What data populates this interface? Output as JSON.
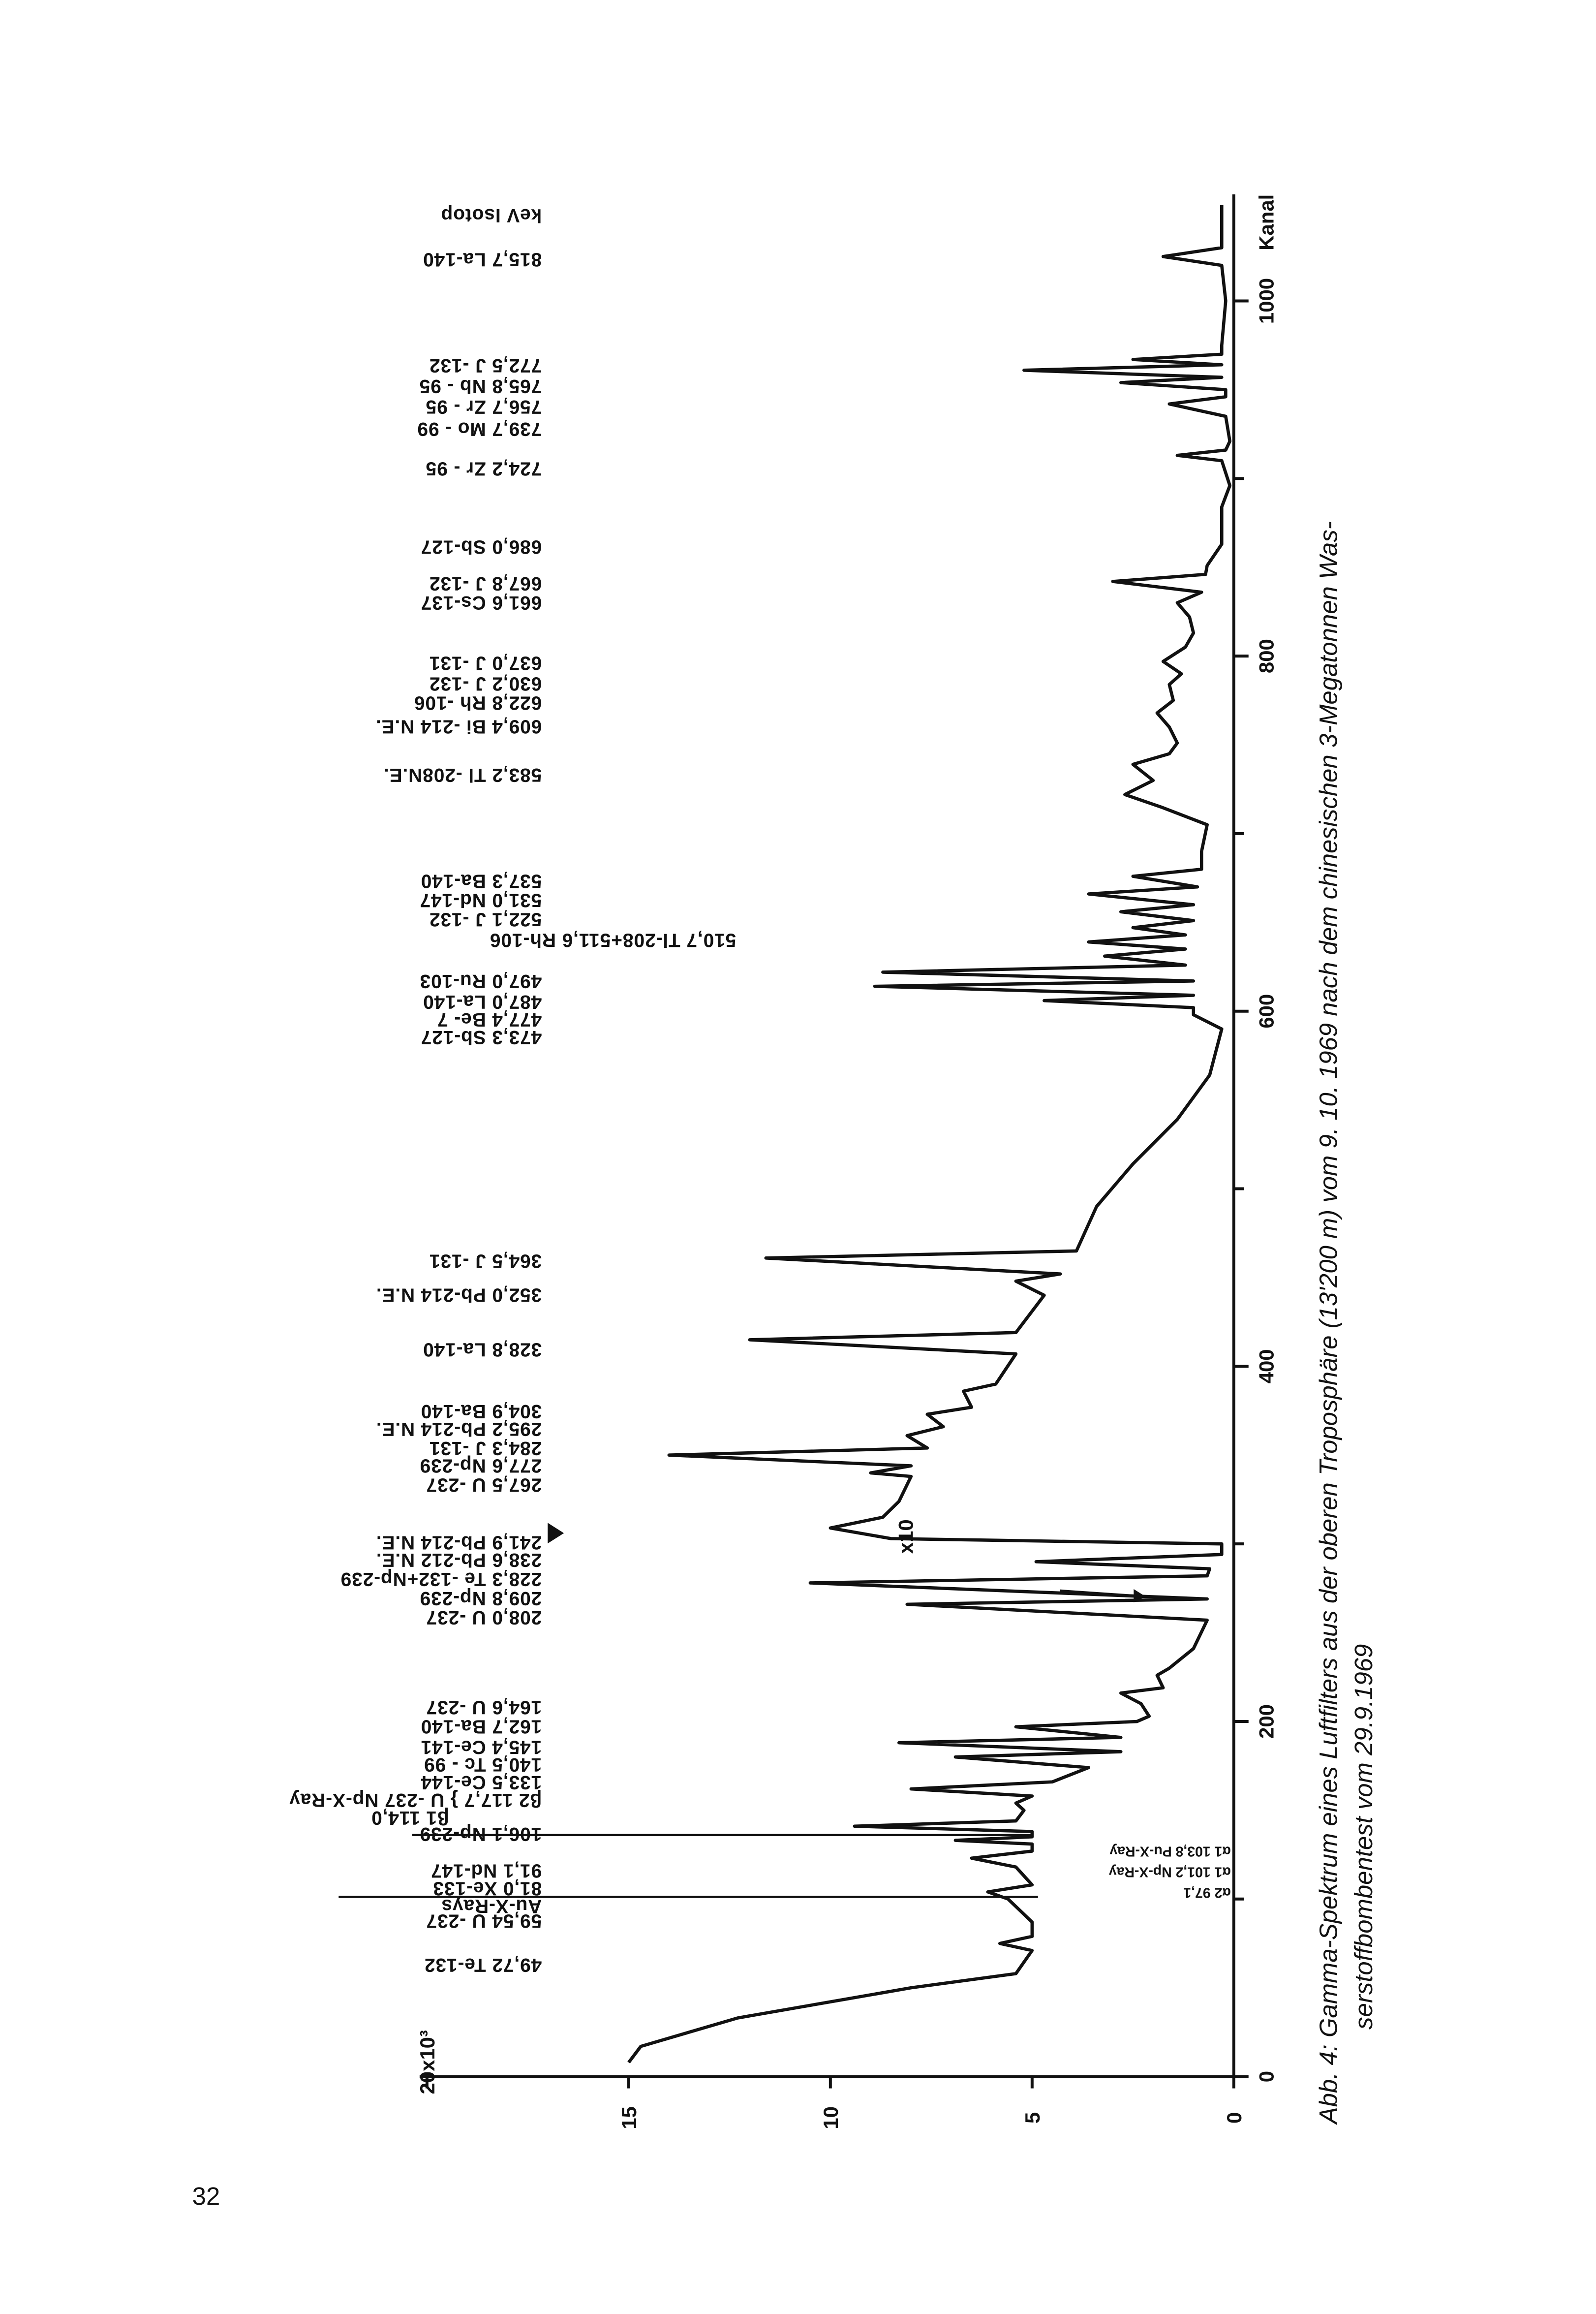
{
  "page_number": "32",
  "caption": [
    "Abb. 4: Gamma-Spektrum eines Luftfilters aus der oberen Troposphäre (13'200 m) vom 9. 10. 1969 nach dem chinesischen 3-Megatonnen Was-",
    "serstoffbombentest vom 29.9.1969"
  ],
  "chart_data": {
    "type": "line",
    "x_label": "Kanal",
    "annotation_header": "keV Isotop",
    "scale_note": "x10",
    "xlim": [
      0,
      1060
    ],
    "xticks": [
      0,
      200,
      400,
      600,
      800,
      1000
    ],
    "xticks_minor": [
      100,
      300,
      500,
      700,
      900
    ],
    "ylim": [
      0,
      20
    ],
    "yticks": [
      0,
      5,
      10,
      15,
      {
        "value": 20,
        "label": "20x10³"
      }
    ],
    "color": "#111111",
    "x": [
      8,
      17,
      33,
      50,
      58,
      71,
      75,
      79,
      87,
      100,
      104,
      108,
      118,
      123,
      127,
      131,
      133,
      135,
      138,
      141,
      144,
      150,
      154,
      158,
      162,
      166,
      174,
      180,
      183,
      188,
      191,
      197,
      200,
      203,
      210,
      216,
      219,
      226,
      230,
      241,
      257,
      266,
      269,
      278,
      282,
      286,
      290,
      294,
      300,
      303,
      309,
      315,
      324,
      338,
      340,
      344,
      350,
      354,
      361,
      366,
      373,
      377,
      386,
      390,
      407,
      415,
      419,
      440,
      448,
      452,
      461,
      465,
      490,
      514,
      539,
      564,
      590,
      598,
      602,
      606,
      609,
      614,
      617,
      622,
      626,
      631,
      635,
      639,
      643,
      647,
      651,
      656,
      660,
      666,
      670,
      676,
      680,
      690,
      705,
      715,
      722,
      730,
      739,
      745,
      751,
      760,
      768,
      775,
      784,
      790,
      797,
      805,
      813,
      822,
      830,
      836,
      842,
      846,
      851,
      863,
      884,
      896,
      910,
      913,
      916,
      921,
      935,
      942,
      946,
      950,
      954,
      957,
      961,
      964,
      967,
      970,
      975,
      1000,
      1020,
      1025,
      1030,
      1054
    ],
    "values": [
      15,
      14.7,
      12.3,
      8.0,
      5.4,
      5.0,
      5.8,
      5.0,
      5.0,
      5.6,
      6.1,
      5.0,
      5.4,
      6.5,
      5.0,
      5.0,
      6.9,
      5.0,
      5.0,
      9.4,
      5.4,
      5.2,
      5.4,
      5.0,
      8.0,
      4.5,
      3.6,
      6.9,
      2.8,
      8.3,
      2.8,
      5.4,
      2.4,
      2.1,
      2.3,
      2.8,
      1.75,
      1.9,
      1.6,
      1.0,
      0.66,
      8.1,
      0.66,
      10.5,
      0.66,
      0.6,
      4.9,
      0.3,
      0.3,
      8.5,
      10.0,
      8.7,
      8.3,
      8.0,
      9.0,
      8.0,
      14.0,
      7.6,
      8.1,
      7.2,
      7.6,
      6.5,
      6.7,
      5.9,
      5.4,
      12.0,
      5.4,
      4.7,
      5.4,
      4.3,
      11.6,
      3.9,
      3.4,
      2.5,
      1.4,
      0.6,
      0.3,
      1.0,
      1.0,
      4.7,
      1.0,
      8.9,
      1.0,
      8.7,
      1.2,
      3.2,
      1.2,
      3.6,
      1.2,
      2.5,
      1.0,
      2.8,
      1.0,
      3.6,
      0.9,
      2.5,
      0.8,
      0.8,
      0.66,
      1.8,
      2.7,
      2.0,
      2.5,
      1.6,
      1.4,
      1.6,
      1.9,
      1.5,
      1.6,
      1.3,
      1.75,
      1.2,
      1.0,
      1.1,
      1.4,
      0.8,
      3.0,
      0.7,
      0.66,
      0.3,
      0.3,
      0.1,
      0.3,
      1.4,
      0.2,
      0.1,
      0.2,
      1.6,
      0.2,
      0.2,
      2.8,
      0.3,
      5.2,
      0.3,
      2.5,
      0.3,
      0.3,
      0.2,
      0.3,
      1.75,
      0.3,
      0.3
    ],
    "annotations": [
      "49,72 Te-132",
      "59,54 U -237",
      "Au-X-Rays",
      "81,0 Xe-133",
      "91,1 Nd-147",
      "106,1 Np-239",
      "β1 114,0",
      "β2 117,7 } U -237 Np-X-Ray",
      "133,5 Ce-144",
      "140,5 Tc - 99",
      "145,4 Ce-141",
      "162,7 Ba-140",
      "164,6 U -237",
      "208,0 U -237",
      "209,8 Np-239",
      "228,3 Te -132+Np-239",
      "238,6 Pb-212 N.E.",
      "241,9 Pb-214 N.E.",
      "267,5 U -237",
      "277,6 Np-239",
      "284,3 J -131",
      "295,2 Pb-214 N.E.",
      "304,9 Ba-140",
      "328,8 La-140",
      "352,0 Pb-214 N.E.",
      "364,5 J -131",
      "473,3 Sb-127",
      "477,4 Be- 7",
      "487,0 La-140",
      "497,0 Ru-103",
      "510,7 Tl-208+511,6 Rh-106",
      "522,1 J -132",
      "531,0 Nd-147",
      "537,3 Ba-140",
      "583,2 Tl -208N.E.",
      "609,4 Bi -214 N.E.",
      "622,8 Rh -106",
      "630,2 J -132",
      "637,0 J -131",
      "661,6 Cs-137",
      "667,8 J -132",
      "686,0 Sb-127",
      "724,2 Zr - 95",
      "739,7 Mo - 99",
      "756,7 Zr - 95",
      "765,8 Nb - 95",
      "772,5 J -132",
      "815,7 La-140"
    ],
    "minor_annotations": [
      "α2 97,1",
      "α1 101,2 Np-X-Ray",
      "α1 103,8 Pu-X-Ray"
    ]
  }
}
